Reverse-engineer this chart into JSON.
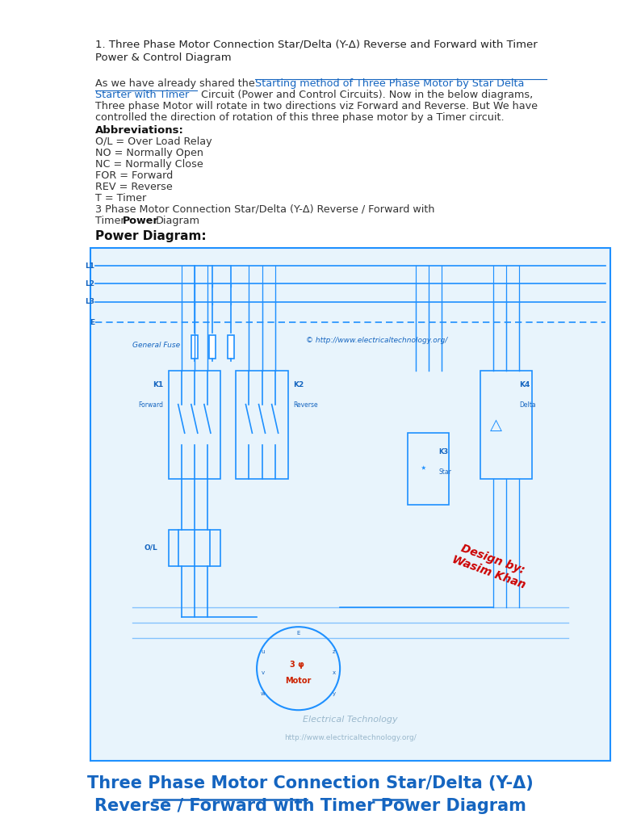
{
  "bg_color": "#ffffff",
  "title_line1": "1. Three Phase Motor Connection Star/Delta (Y-Δ) Reverse and Forward with Timer",
  "title_line2": "Power & Control Diagram",
  "abbrev_header": "Abbreviations:",
  "abbreviations": [
    "O/L = Over Load Relay",
    "NO = Normally Open",
    "NC = Normally Close",
    "FOR = Forward",
    "REV = Reverse",
    "T = Timer"
  ],
  "pre_diagram_text1": "3 Phase Motor Connection Star/Delta (Y-Δ) Reverse / Forward with",
  "power_diagram_label": "Power Diagram:",
  "label_color": "#1565c0",
  "line_color": "#1e90ff",
  "design_text_color": "#cc0000",
  "motor_text_color": "#cc2200",
  "footer_text1": "Electrical Technology",
  "footer_text2": "http://www.electricaltechnology.org/",
  "caption_line1": "Three Phase Motor Connection Star/Delta (Y-Δ)",
  "caption_line2": "Reverse / Forward with Timer Power Diagram",
  "caption_color": "#1565c0",
  "copyright_text": "© http://www.electricaltechnology.org/"
}
